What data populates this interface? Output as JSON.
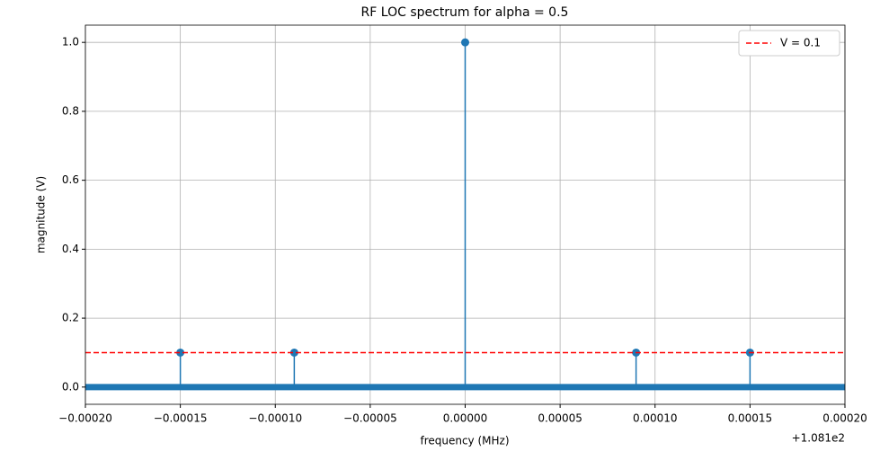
{
  "chart_data": {
    "type": "stem",
    "title": "RF LOC spectrum for alpha = 0.5",
    "x_label": "frequency (MHz)",
    "y_label": "magnitude (V)",
    "x_offset_label": "+1.081e2",
    "x": [
      -0.00015,
      -9e-05,
      0,
      9e-05,
      0.00015
    ],
    "values": [
      0.1,
      0.1,
      1.0,
      0.1,
      0.1
    ],
    "color": "#1f77b4",
    "hlines": [
      {
        "label": "V = 0.1",
        "value": 0.1,
        "color": "red",
        "dashed": true
      }
    ],
    "xlim": [
      -0.0002,
      0.0002
    ],
    "xticks": [
      {
        "value": -0.0002,
        "label": "−0.00020"
      },
      {
        "value": -0.00015,
        "label": "−0.00015"
      },
      {
        "value": -0.0001,
        "label": "−0.00010"
      },
      {
        "value": -5e-05,
        "label": "−0.00005"
      },
      {
        "value": 0,
        "label": "0.00000"
      },
      {
        "value": 5e-05,
        "label": "0.00005"
      },
      {
        "value": 0.0001,
        "label": "0.00010"
      },
      {
        "value": 0.00015,
        "label": "0.00015"
      },
      {
        "value": 0.0002,
        "label": "0.00020"
      }
    ],
    "ylim": [
      -0.05,
      1.05
    ],
    "yticks": [
      {
        "value": 0,
        "label": "0.0"
      },
      {
        "value": 0.2,
        "label": "0.2"
      },
      {
        "value": 0.4,
        "label": "0.4"
      },
      {
        "value": 0.6,
        "label": "0.6"
      },
      {
        "value": 0.8,
        "label": "0.8"
      },
      {
        "value": 1.0,
        "label": "1.0"
      }
    ],
    "grid": true,
    "legend": "upper-right"
  }
}
